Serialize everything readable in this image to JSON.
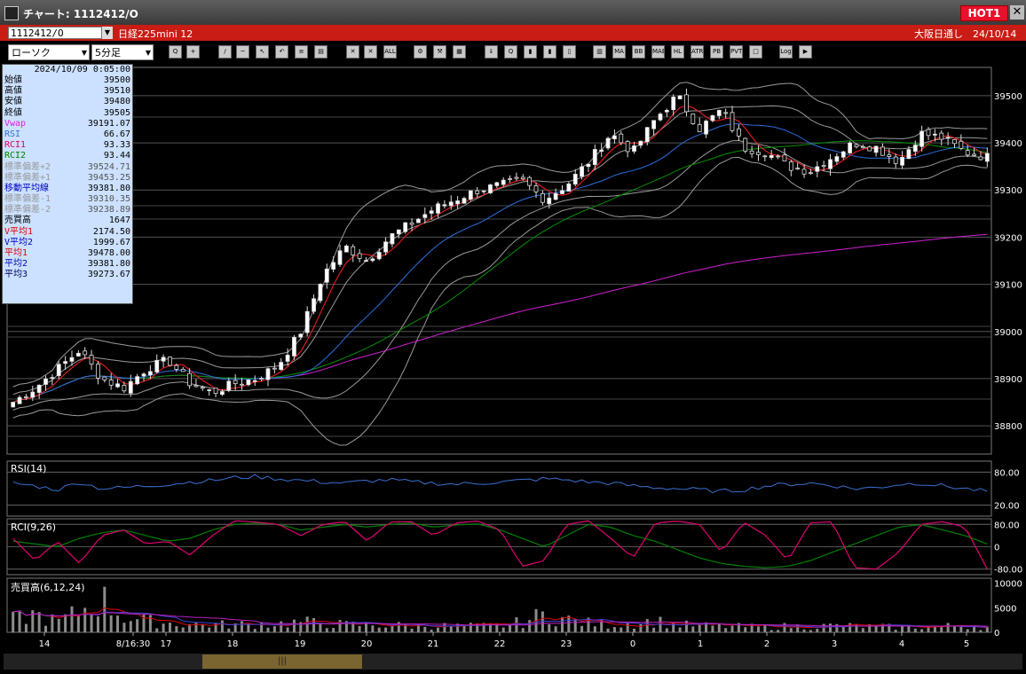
{
  "window": {
    "title": "チャート: 1112412/O",
    "hot_label": "HOT1",
    "close_label": "✕"
  },
  "infobar": {
    "symbol": "1112412/O",
    "instrument": "日経225mini 12",
    "session": "大阪日通し　24/10/14"
  },
  "toolbar": {
    "chart_type": "ローソク",
    "interval": "5分足",
    "icons": [
      {
        "name": "zoom-icon",
        "text": "Q"
      },
      {
        "name": "crosshair-icon",
        "text": "+"
      },
      {
        "name": "draw-line-icon",
        "text": "/"
      },
      {
        "name": "trendline-icon",
        "text": "~"
      },
      {
        "name": "cursor-icon",
        "text": "↖"
      },
      {
        "name": "undo-icon",
        "text": "↶"
      },
      {
        "name": "list-icon",
        "text": "≡"
      },
      {
        "name": "save-icon",
        "text": "▤"
      },
      {
        "name": "delete-icon",
        "text": "✕"
      },
      {
        "name": "delete-selected-icon",
        "text": "✕"
      },
      {
        "name": "delete-all-button",
        "text": "ALL"
      },
      {
        "name": "settings-icon",
        "text": "⚙"
      },
      {
        "name": "wrench-icon",
        "text": "⚒"
      },
      {
        "name": "color-icon",
        "text": "▦"
      },
      {
        "name": "indicator-icon",
        "text": "⇓"
      },
      {
        "name": "search-indicator-icon",
        "text": "Q"
      },
      {
        "name": "tech-chart-icon",
        "text": "▮"
      },
      {
        "name": "tech-chart-2-icon",
        "text": "▮"
      },
      {
        "name": "disabled-icon",
        "text": "▯"
      },
      {
        "name": "bar-chart-icon",
        "text": "▥"
      },
      {
        "name": "ma-button",
        "text": "MA"
      },
      {
        "name": "bb-button",
        "text": "BB"
      },
      {
        "name": "mae-button",
        "text": "MAE"
      },
      {
        "name": "hl-button",
        "text": "HL"
      },
      {
        "name": "atr-button",
        "text": "ATR"
      },
      {
        "name": "pb-button",
        "text": "PB"
      },
      {
        "name": "pvt-button",
        "text": "PVT"
      },
      {
        "name": "square-icon",
        "text": "□"
      },
      {
        "name": "log-button",
        "text": "Log"
      },
      {
        "name": "export-icon",
        "text": "▶"
      }
    ]
  },
  "info_panel": {
    "datetime": "2024/10/09 0:05:00",
    "rows": [
      {
        "label": "始値",
        "value": "39500",
        "color": "#000000"
      },
      {
        "label": "高値",
        "value": "39510",
        "color": "#000000"
      },
      {
        "label": "安値",
        "value": "39480",
        "color": "#000000"
      },
      {
        "label": "終値",
        "value": "39505",
        "color": "#000000"
      },
      {
        "label": "Vwap",
        "value": "39191.07",
        "color": "#e020e0"
      },
      {
        "label": "RSI",
        "value": "66.67",
        "color": "#3a70d0"
      },
      {
        "label": "RCI1",
        "value": "93.33",
        "color": "#e00060"
      },
      {
        "label": "RCI2",
        "value": "93.44",
        "color": "#008000"
      },
      {
        "label": "標準偏差+2",
        "value": "39524.71",
        "color": "#999999"
      },
      {
        "label": "標準偏差+1",
        "value": "39453.25",
        "color": "#999999"
      },
      {
        "label": "移動平均線",
        "value": "39381.80",
        "color": "#0000c0"
      },
      {
        "label": "標準偏差-1",
        "value": "39310.35",
        "color": "#999999"
      },
      {
        "label": "標準偏差-2",
        "value": "39238.89",
        "color": "#999999"
      },
      {
        "label": "売買高",
        "value": "1647",
        "color": "#000000"
      },
      {
        "label": "V平均1",
        "value": "2174.50",
        "color": "#e00000"
      },
      {
        "label": "V平均2",
        "value": "1999.67",
        "color": "#0000c0"
      },
      {
        "label": "平均1",
        "value": "39478.00",
        "color": "#e00000"
      },
      {
        "label": "平均2",
        "value": "39381.80",
        "color": "#0000c0"
      },
      {
        "label": "平均3",
        "value": "39273.67",
        "color": "#000060"
      }
    ]
  },
  "panes": {
    "rsi_label": "RSI(14)",
    "rci_label": "RCI(9,26)",
    "vol_label": "売買高(6,12,24)"
  },
  "scroll_grip": "|||",
  "chart_data": {
    "type": "candlestick",
    "price_axis": {
      "ticks": [
        39500,
        39400,
        39300,
        39200,
        39100,
        39000,
        38900,
        38800
      ],
      "range": [
        38740,
        39560
      ]
    },
    "rsi_axis": {
      "ticks": [
        "80.00",
        "20.00"
      ]
    },
    "rci_axis": {
      "ticks": [
        "80.00",
        "0",
        "-80.00"
      ]
    },
    "volume_axis": {
      "ticks": [
        "10000",
        "5000",
        "0"
      ],
      "range": [
        0,
        11000
      ]
    },
    "x_labels": [
      "14",
      "8/16:30",
      "17",
      "18",
      "19",
      "20",
      "21",
      "22",
      "23",
      "0",
      "1",
      "2",
      "3",
      "4",
      "5"
    ],
    "close_keypoints": [
      38850,
      38880,
      38920,
      38960,
      38900,
      38880,
      38920,
      38940,
      38890,
      38870,
      38890,
      38900,
      38930,
      39000,
      39120,
      39180,
      39150,
      39200,
      39230,
      39260,
      39280,
      39300,
      39310,
      39320,
      39280,
      39310,
      39360,
      39420,
      39380,
      39450,
      39500,
      39430,
      39470,
      39390,
      39380,
      39350,
      39340,
      39370,
      39400,
      39390,
      39360,
      39420,
      39410,
      39380,
      39370
    ],
    "volume_keypoints": [
      2500,
      3500,
      2000,
      4000,
      6500,
      3000,
      2200,
      1800,
      1600,
      1500,
      1500,
      1600,
      1700,
      2000,
      1800,
      1500,
      1400,
      1400,
      1300,
      1300,
      1200,
      1200,
      1300,
      2000,
      3500,
      2500,
      1800,
      1500,
      1800,
      2200,
      1500,
      1300,
      1200,
      1100,
      1000,
      1200,
      1100,
      1300,
      1200,
      1100,
      1000,
      1100,
      1200,
      1300,
      1000
    ],
    "rsi_keypoints": [
      60,
      55,
      48,
      62,
      50,
      52,
      55,
      58,
      62,
      65,
      70,
      72,
      68,
      65,
      62,
      60,
      64,
      66,
      62,
      60,
      58,
      60,
      62,
      65,
      68,
      66,
      62,
      60,
      55,
      52,
      50,
      48,
      45,
      48,
      55,
      58,
      60,
      56,
      50,
      52,
      58,
      60,
      55,
      50,
      45
    ],
    "rci1_keypoints": [
      30,
      -50,
      20,
      -60,
      40,
      60,
      10,
      20,
      -30,
      40,
      93,
      88,
      80,
      40,
      80,
      90,
      20,
      88,
      90,
      40,
      85,
      92,
      60,
      -70,
      -50,
      80,
      93,
      30,
      -40,
      85,
      92,
      80,
      -20,
      88,
      40,
      -50,
      85,
      90,
      -75,
      -80,
      -20,
      80,
      90,
      70,
      -80
    ],
    "rci2_keypoints": [
      20,
      10,
      0,
      30,
      50,
      60,
      40,
      20,
      30,
      60,
      80,
      85,
      80,
      60,
      70,
      80,
      70,
      80,
      85,
      70,
      78,
      82,
      60,
      30,
      0,
      40,
      80,
      70,
      40,
      20,
      -10,
      -40,
      -60,
      -70,
      -75,
      -70,
      -50,
      -20,
      10,
      40,
      70,
      80,
      60,
      40,
      10
    ]
  }
}
